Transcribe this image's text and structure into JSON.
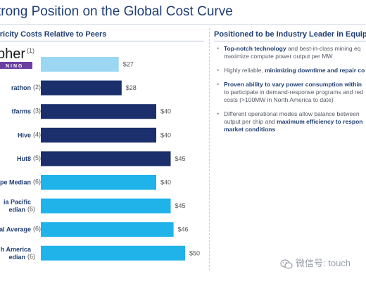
{
  "page": {
    "title": "trong Position on the Global Cost Curve",
    "left_header": "ctricity Costs Relative to Peers",
    "right_header": "Positioned to be Industry Leader in Equipment"
  },
  "logo": {
    "name": "pher",
    "footnote": "(1)",
    "sub": "NING"
  },
  "bullets": [
    {
      "lines": [
        [
          {
            "t": "Top-notch technology",
            "b": true
          },
          {
            "t": " and best-in-class mining eq",
            "b": false
          }
        ],
        [
          {
            "t": "maximize compute power output per MW",
            "b": false
          }
        ]
      ]
    },
    {
      "lines": [
        [
          {
            "t": "Highly reliable, ",
            "b": false
          },
          {
            "t": "minimizing downtime and repair co",
            "b": true
          }
        ]
      ]
    },
    {
      "lines": [
        [
          {
            "t": "Proven ability to vary power consumption within",
            "b": true
          }
        ],
        [
          {
            "t": "to participate in demand-response programs and red",
            "b": false
          }
        ],
        [
          {
            "t": "costs (>100MW in North America to date)",
            "b": false
          }
        ]
      ]
    },
    {
      "lines": [
        [
          {
            "t": "Different operational modes allow balance between",
            "b": false
          }
        ],
        [
          {
            "t": "output per chip and ",
            "b": false
          },
          {
            "t": "maximum efficiency to respon",
            "b": true
          }
        ],
        [
          {
            "t": "market conditions",
            "b": true
          }
        ]
      ]
    }
  ],
  "watermark": {
    "text": "微信号: touch",
    "icon": "wechat-icon"
  },
  "chart_data": {
    "type": "bar",
    "orientation": "horizontal",
    "value_prefix": "$",
    "categories": [
      {
        "label": "",
        "footnote": "",
        "value": 27,
        "color": "#9bd6f2",
        "logo": true
      },
      {
        "label": "rathon",
        "footnote": "(2)",
        "value": 28,
        "color": "#1a2f6b"
      },
      {
        "label": "tfarms",
        "footnote": "(3)",
        "value": 40,
        "color": "#1a2f6b"
      },
      {
        "label": "Hive",
        "footnote": "(4)",
        "value": 40,
        "color": "#1a2f6b"
      },
      {
        "label": "Hut8",
        "footnote": "(5)",
        "value": 45,
        "color": "#1a2f6b"
      },
      {
        "label": "pe Median",
        "footnote": "(6)",
        "value": 40,
        "color": "#1fb3ea"
      },
      {
        "label": [
          "ia Pacific",
          "edian"
        ],
        "footnote": "(6)",
        "value": 45,
        "color": "#1fb3ea"
      },
      {
        "label": "al Average",
        "footnote": "(6)",
        "value": 46,
        "color": "#1fb3ea"
      },
      {
        "label": [
          "h America",
          "edian"
        ],
        "footnote": "(6)",
        "value": 50,
        "color": "#1fb3ea"
      }
    ]
  }
}
